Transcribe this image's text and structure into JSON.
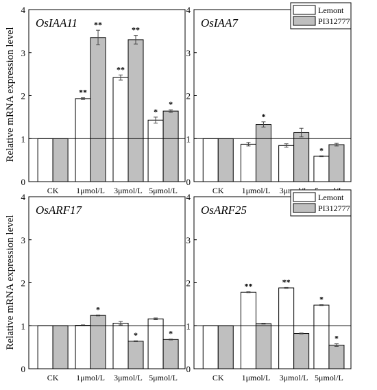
{
  "ylabel": "Relative mRNA expression level",
  "legend": {
    "series_names": [
      "Lemont",
      "PI312777"
    ],
    "colors": [
      "#ffffff",
      "#bfbfbf"
    ]
  },
  "chart_data": [
    {
      "type": "bar",
      "title": "OsIAA11",
      "categories": [
        "CK",
        "1μmol/L",
        "3μmol/L",
        "5μmol/L"
      ],
      "series": [
        {
          "name": "Lemont",
          "values": [
            1.0,
            1.93,
            2.42,
            1.43
          ],
          "errors": [
            0,
            0.02,
            0.06,
            0.07
          ],
          "sig": [
            "",
            "**",
            "**",
            "*"
          ]
        },
        {
          "name": "PI312777",
          "values": [
            1.0,
            3.35,
            3.3,
            1.64
          ],
          "errors": [
            0,
            0.17,
            0.1,
            0.03
          ],
          "sig": [
            "",
            "**",
            "**",
            "*"
          ]
        }
      ],
      "ylim": [
        0,
        4
      ],
      "yticks": [
        "0",
        "1",
        "2",
        "3",
        "4"
      ],
      "reference_line": 1,
      "legend": false
    },
    {
      "type": "bar",
      "title": "OsIAA7",
      "categories": [
        "CK",
        "1μmol/L",
        "3μmol/L",
        "5μmol/L"
      ],
      "series": [
        {
          "name": "Lemont",
          "values": [
            1.0,
            0.87,
            0.84,
            0.59
          ],
          "errors": [
            0,
            0.04,
            0.04,
            0.01
          ],
          "sig": [
            "",
            "",
            "",
            "*"
          ]
        },
        {
          "name": "PI312777",
          "values": [
            1.0,
            1.33,
            1.14,
            0.86
          ],
          "errors": [
            0,
            0.06,
            0.1,
            0.03
          ],
          "sig": [
            "",
            "*",
            "",
            ""
          ]
        }
      ],
      "ylim": [
        0,
        4
      ],
      "yticks": [
        "0",
        "1",
        "2",
        "3",
        "4"
      ],
      "reference_line": 1,
      "legend": true
    },
    {
      "type": "bar",
      "title": "OsARF17",
      "categories": [
        "CK",
        "1μmol/L",
        "3μmol/L",
        "5μmol/L"
      ],
      "series": [
        {
          "name": "Lemont",
          "values": [
            1.0,
            1.01,
            1.06,
            1.16
          ],
          "errors": [
            0,
            0.01,
            0.04,
            0.02
          ],
          "sig": [
            "",
            "",
            "",
            ""
          ]
        },
        {
          "name": "PI312777",
          "values": [
            1.0,
            1.24,
            0.64,
            0.68
          ],
          "errors": [
            0,
            0.01,
            0.01,
            0.01
          ],
          "sig": [
            "",
            "*",
            "*",
            "*"
          ]
        }
      ],
      "ylim": [
        0,
        4
      ],
      "yticks": [
        "0",
        "1",
        "2",
        "3",
        "4"
      ],
      "reference_line": 1,
      "legend": false
    },
    {
      "type": "bar",
      "title": "OsARF25",
      "categories": [
        "CK",
        "1μmol/L",
        "3μmol/L",
        "5μmol/L"
      ],
      "series": [
        {
          "name": "Lemont",
          "values": [
            1.0,
            1.78,
            1.88,
            1.48
          ],
          "errors": [
            0,
            0.01,
            0.01,
            0.01
          ],
          "sig": [
            "",
            "**",
            "**",
            "*"
          ]
        },
        {
          "name": "PI312777",
          "values": [
            1.0,
            1.05,
            0.82,
            0.55
          ],
          "errors": [
            0,
            0.01,
            0.01,
            0.03
          ],
          "sig": [
            "",
            "",
            "",
            "*"
          ]
        }
      ],
      "ylim": [
        0,
        4
      ],
      "yticks": [
        "0",
        "1",
        "2",
        "3",
        "4"
      ],
      "reference_line": 1,
      "legend": true
    }
  ]
}
